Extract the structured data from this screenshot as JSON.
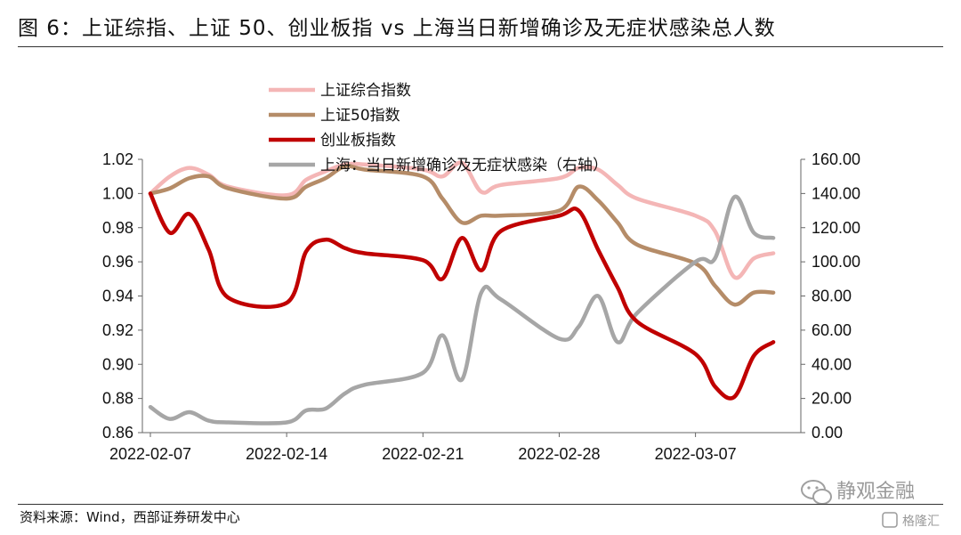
{
  "figure": {
    "title": "图 6：上证综指、上证 50、创业板指 vs 上海当日新增确诊及无症状感染总人数",
    "source": "资料来源：Wind，西部证券研发中心",
    "watermark_main": "静观金融",
    "watermark_corner": "格隆汇"
  },
  "chart_data": {
    "type": "line",
    "x_ticks": [
      "2022-02-07",
      "2022-02-14",
      "2022-02-21",
      "2022-02-28",
      "2022-03-07"
    ],
    "left_axis": {
      "range": [
        0.86,
        1.02
      ],
      "ticks": [
        "0.86",
        "0.88",
        "0.90",
        "0.92",
        "0.94",
        "0.96",
        "0.98",
        "1.00",
        "1.02"
      ]
    },
    "right_axis": {
      "range": [
        0,
        160
      ],
      "ticks": [
        "0.00",
        "20.00",
        "40.00",
        "60.00",
        "80.00",
        "100.00",
        "120.00",
        "140.00",
        "160.00"
      ]
    },
    "legend_position": "top-center",
    "series": [
      {
        "name": "上证综合指数",
        "axis": "left",
        "color": "#f4b6b6",
        "x": [
          "2022-02-07",
          "2022-02-08",
          "2022-02-09",
          "2022-02-10",
          "2022-02-11",
          "2022-02-14",
          "2022-02-15",
          "2022-02-16",
          "2022-02-17",
          "2022-02-18",
          "2022-02-21",
          "2022-02-22",
          "2022-02-23",
          "2022-02-24",
          "2022-02-25",
          "2022-02-28",
          "2022-03-01",
          "2022-03-02",
          "2022-03-03",
          "2022-03-04",
          "2022-03-07",
          "2022-03-08",
          "2022-03-09",
          "2022-03-10",
          "2022-03-11"
        ],
        "y": [
          1.0,
          1.01,
          1.015,
          1.011,
          1.004,
          0.999,
          1.008,
          1.013,
          1.017,
          1.017,
          1.014,
          1.01,
          1.018,
          1.001,
          1.005,
          1.009,
          1.015,
          1.014,
          1.005,
          0.997,
          0.987,
          0.978,
          0.951,
          0.962,
          0.965
        ]
      },
      {
        "name": "上证50指数",
        "axis": "left",
        "color": "#b58c68",
        "x": [
          "2022-02-07",
          "2022-02-08",
          "2022-02-09",
          "2022-02-10",
          "2022-02-11",
          "2022-02-14",
          "2022-02-15",
          "2022-02-16",
          "2022-02-17",
          "2022-02-18",
          "2022-02-21",
          "2022-02-22",
          "2022-02-23",
          "2022-02-24",
          "2022-02-25",
          "2022-02-28",
          "2022-03-01",
          "2022-03-02",
          "2022-03-03",
          "2022-03-04",
          "2022-03-07",
          "2022-03-08",
          "2022-03-09",
          "2022-03-10",
          "2022-03-11"
        ],
        "y": [
          1.0,
          1.003,
          1.009,
          1.01,
          1.003,
          0.997,
          1.004,
          1.009,
          1.016,
          1.014,
          1.01,
          0.997,
          0.983,
          0.987,
          0.987,
          0.99,
          1.004,
          0.996,
          0.983,
          0.97,
          0.959,
          0.946,
          0.935,
          0.942,
          0.942
        ]
      },
      {
        "name": "创业板指数",
        "axis": "left",
        "color": "#c00000",
        "x": [
          "2022-02-07",
          "2022-02-08",
          "2022-02-09",
          "2022-02-10",
          "2022-02-11",
          "2022-02-14",
          "2022-02-15",
          "2022-02-16",
          "2022-02-17",
          "2022-02-18",
          "2022-02-21",
          "2022-02-22",
          "2022-02-23",
          "2022-02-24",
          "2022-02-25",
          "2022-02-28",
          "2022-03-01",
          "2022-03-02",
          "2022-03-03",
          "2022-03-04",
          "2022-03-07",
          "2022-03-08",
          "2022-03-09",
          "2022-03-10",
          "2022-03-11"
        ],
        "y": [
          1.0,
          0.977,
          0.988,
          0.967,
          0.939,
          0.936,
          0.966,
          0.973,
          0.968,
          0.965,
          0.961,
          0.95,
          0.974,
          0.955,
          0.978,
          0.987,
          0.99,
          0.967,
          0.945,
          0.925,
          0.906,
          0.887,
          0.881,
          0.905,
          0.913
        ]
      },
      {
        "name": "上海：当日新增确诊及无症状感染（右轴）",
        "axis": "right",
        "color": "#a6a6a6",
        "x": [
          "2022-02-07",
          "2022-02-08",
          "2022-02-09",
          "2022-02-10",
          "2022-02-11",
          "2022-02-14",
          "2022-02-15",
          "2022-02-16",
          "2022-02-17",
          "2022-02-18",
          "2022-02-21",
          "2022-02-22",
          "2022-02-23",
          "2022-02-24",
          "2022-02-25",
          "2022-02-28",
          "2022-03-01",
          "2022-03-02",
          "2022-03-03",
          "2022-03-04",
          "2022-03-07",
          "2022-03-08",
          "2022-03-09",
          "2022-03-10",
          "2022-03-11"
        ],
        "y": [
          15,
          8,
          12,
          7,
          6,
          6,
          13,
          14,
          23,
          28,
          35,
          57,
          31,
          82,
          78,
          55,
          62,
          80,
          53,
          70,
          100,
          102,
          138,
          117,
          114
        ]
      }
    ]
  }
}
